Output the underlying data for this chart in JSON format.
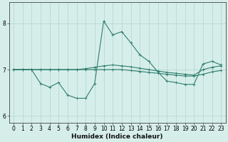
{
  "xlabel": "Humidex (Indice chaleur)",
  "bg_color": "#d6eeea",
  "line_color": "#2e7d6e",
  "grid_color": "#b8d8d2",
  "x_values": [
    0,
    1,
    2,
    3,
    4,
    5,
    6,
    7,
    8,
    9,
    10,
    11,
    12,
    13,
    14,
    15,
    16,
    17,
    18,
    19,
    20,
    21,
    22,
    23
  ],
  "y_main": [
    7.0,
    7.0,
    7.0,
    6.7,
    6.62,
    6.72,
    6.45,
    6.38,
    6.38,
    6.7,
    8.05,
    7.75,
    7.82,
    7.58,
    7.32,
    7.18,
    6.95,
    6.75,
    6.72,
    6.68,
    6.68,
    7.12,
    7.18,
    7.1
  ],
  "y_trend1": [
    7.0,
    7.0,
    7.0,
    7.0,
    7.0,
    7.0,
    7.0,
    7.0,
    7.0,
    7.0,
    7.0,
    7.0,
    7.0,
    6.98,
    6.96,
    6.94,
    6.92,
    6.9,
    6.88,
    6.86,
    6.86,
    6.9,
    6.95,
    6.98
  ],
  "y_trend2": [
    7.0,
    7.0,
    7.0,
    7.0,
    7.0,
    7.0,
    7.0,
    7.0,
    7.02,
    7.05,
    7.08,
    7.1,
    7.08,
    7.06,
    7.03,
    7.0,
    6.97,
    6.94,
    6.92,
    6.9,
    6.88,
    7.0,
    7.05,
    7.08
  ],
  "ylim": [
    5.85,
    8.45
  ],
  "yticks": [
    6,
    7,
    8
  ],
  "xlim": [
    -0.5,
    23.5
  ],
  "xticks": [
    0,
    1,
    2,
    3,
    4,
    5,
    6,
    7,
    8,
    9,
    10,
    11,
    12,
    13,
    14,
    15,
    16,
    17,
    18,
    19,
    20,
    21,
    22,
    23
  ],
  "xlabel_fontsize": 6.5,
  "tick_fontsize": 5.5
}
